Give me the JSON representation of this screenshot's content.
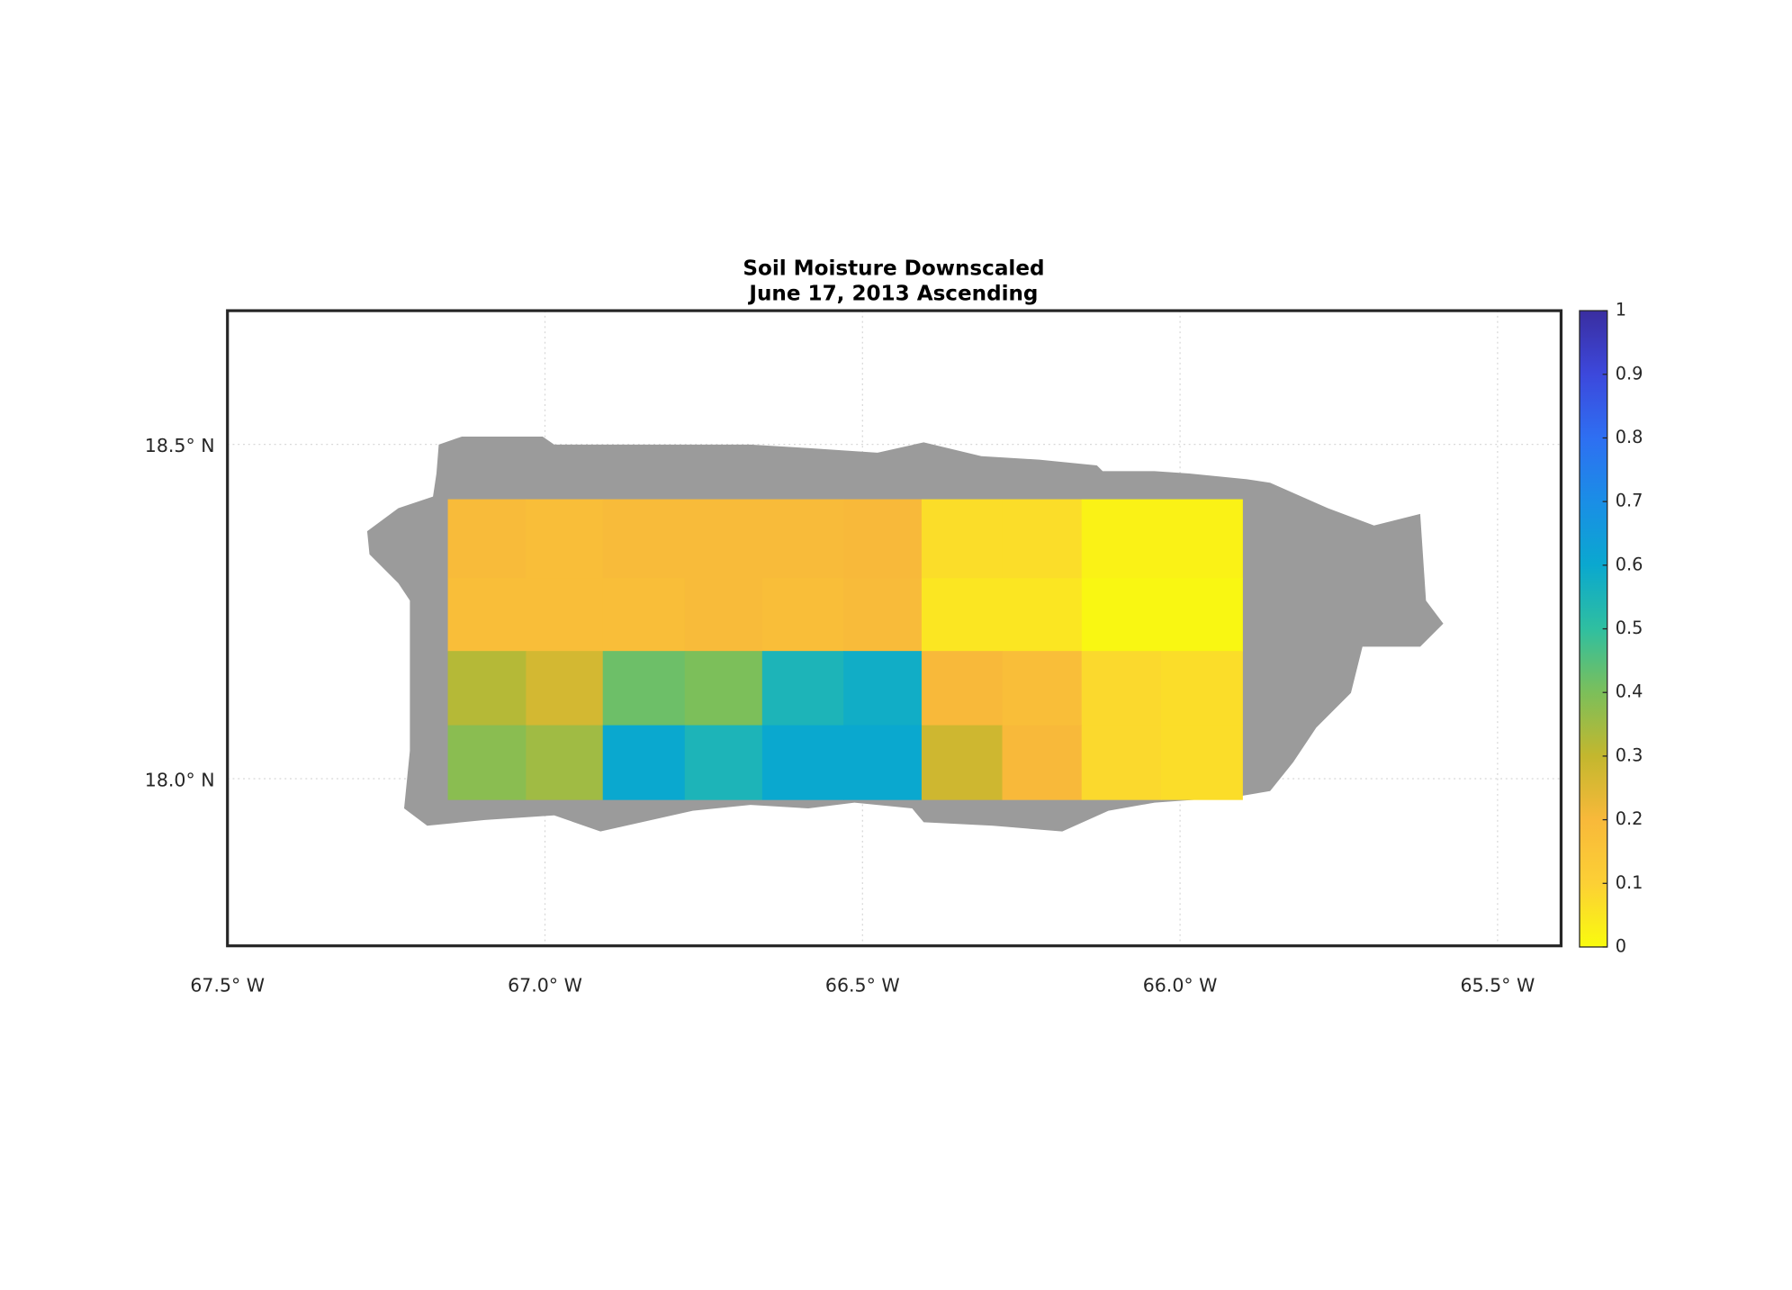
{
  "chart_data": {
    "type": "heatmap",
    "title": "Soil Moisture Downscaled",
    "subtitle": "June 17, 2013 Ascending",
    "xlim": [
      -67.5,
      -65.4
    ],
    "ylim": [
      17.75,
      18.7
    ],
    "xticks": [
      {
        "value": -67.5,
        "label": "67.5° W"
      },
      {
        "value": -67.0,
        "label": "67.0° W"
      },
      {
        "value": -66.5,
        "label": "66.5° W"
      },
      {
        "value": -66.0,
        "label": "66.0° W"
      },
      {
        "value": -65.5,
        "label": "65.5° W"
      }
    ],
    "yticks": [
      {
        "value": 18.5,
        "label": "18.5° N"
      },
      {
        "value": 18.0,
        "label": "18.0° N"
      }
    ],
    "grid": true,
    "lon_edges": [
      -67.153,
      -67.03,
      -66.909,
      -66.78,
      -66.658,
      -66.53,
      -66.407,
      -66.28,
      -66.155,
      -66.03,
      -65.902
    ],
    "lat_edges": [
      18.418,
      18.3,
      18.191,
      18.08,
      17.969
    ],
    "values": [
      [
        0.19,
        0.18,
        0.19,
        0.19,
        0.19,
        0.2,
        0.07,
        0.07,
        0.02,
        0.02
      ],
      [
        0.18,
        0.18,
        0.18,
        0.19,
        0.18,
        0.19,
        0.05,
        0.05,
        0.01,
        0.01
      ],
      [
        0.32,
        0.27,
        0.42,
        0.4,
        0.55,
        0.58,
        0.2,
        0.18,
        0.08,
        0.07
      ],
      [
        0.38,
        0.35,
        0.6,
        0.55,
        0.6,
        0.6,
        0.28,
        0.2,
        0.08,
        0.07
      ]
    ],
    "land_color": "#9b9b9b",
    "colormap": [
      "#f9fb0e",
      "#fcd035",
      "#f8b93a",
      "#c3b72e",
      "#7cbf5a",
      "#2fbfa0",
      "#0aa8cf",
      "#1a8ee6",
      "#2e6ff2",
      "#3c48dc",
      "#3a2ea0"
    ],
    "colorbar": {
      "clim": [
        0,
        1
      ],
      "ticks": [
        0,
        0.1,
        0.2,
        0.3,
        0.4,
        0.5,
        0.6,
        0.7,
        0.8,
        0.9,
        1
      ]
    }
  }
}
